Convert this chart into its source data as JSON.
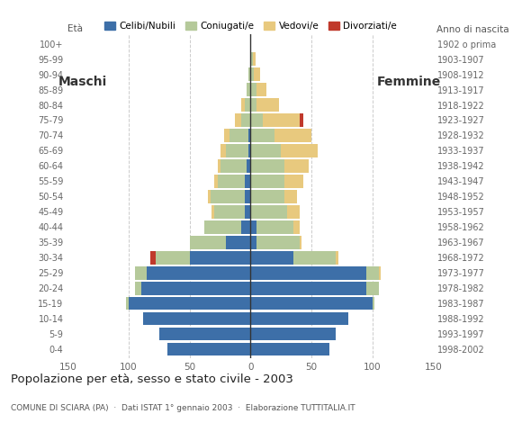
{
  "age_groups": [
    "0-4",
    "5-9",
    "10-14",
    "15-19",
    "20-24",
    "25-29",
    "30-34",
    "35-39",
    "40-44",
    "45-49",
    "50-54",
    "55-59",
    "60-64",
    "65-69",
    "70-74",
    "75-79",
    "80-84",
    "85-89",
    "90-94",
    "95-99",
    "100+"
  ],
  "birth_years": [
    "1998-2002",
    "1993-1997",
    "1988-1992",
    "1983-1987",
    "1978-1982",
    "1973-1977",
    "1968-1972",
    "1963-1967",
    "1958-1962",
    "1953-1957",
    "1948-1952",
    "1943-1947",
    "1938-1942",
    "1933-1937",
    "1928-1932",
    "1923-1927",
    "1918-1922",
    "1913-1917",
    "1908-1912",
    "1903-1907",
    "1902 o prima"
  ],
  "males": {
    "celibi": [
      68,
      75,
      88,
      100,
      90,
      85,
      50,
      20,
      8,
      5,
      5,
      5,
      3,
      2,
      2,
      0,
      0,
      0,
      0,
      0,
      0
    ],
    "coniugati": [
      0,
      0,
      0,
      2,
      5,
      10,
      28,
      30,
      30,
      25,
      28,
      22,
      22,
      18,
      15,
      8,
      5,
      3,
      2,
      0,
      0
    ],
    "vedovi": [
      0,
      0,
      0,
      0,
      0,
      0,
      0,
      0,
      0,
      2,
      2,
      3,
      2,
      5,
      5,
      5,
      3,
      0,
      0,
      0,
      0
    ],
    "divorziati": [
      0,
      0,
      0,
      0,
      0,
      0,
      4,
      0,
      0,
      0,
      0,
      0,
      0,
      0,
      0,
      0,
      0,
      0,
      0,
      0,
      0
    ]
  },
  "females": {
    "nubili": [
      65,
      70,
      80,
      100,
      95,
      95,
      35,
      5,
      5,
      0,
      0,
      0,
      0,
      0,
      0,
      0,
      0,
      0,
      0,
      0,
      0
    ],
    "coniugate": [
      0,
      0,
      0,
      2,
      10,
      10,
      35,
      35,
      30,
      30,
      28,
      28,
      28,
      25,
      20,
      10,
      5,
      5,
      3,
      2,
      0
    ],
    "vedove": [
      0,
      0,
      0,
      0,
      0,
      2,
      2,
      2,
      5,
      10,
      10,
      15,
      20,
      30,
      30,
      30,
      18,
      8,
      5,
      2,
      0
    ],
    "divorziate": [
      0,
      0,
      0,
      0,
      0,
      0,
      0,
      0,
      0,
      0,
      0,
      0,
      0,
      0,
      0,
      3,
      0,
      0,
      0,
      0,
      0
    ]
  },
  "color_celibi": "#3d6fa8",
  "color_coniugati": "#b5c99a",
  "color_vedovi": "#e8c97e",
  "color_divorziati": "#c0392b",
  "title": "Popolazione per età, sesso e stato civile - 2003",
  "subtitle": "COMUNE DI SCIARA (PA)  ·  Dati ISTAT 1° gennaio 2003  ·  Elaborazione TUTTITALIA.IT",
  "xlabel_left": "Maschi",
  "xlabel_right": "Femmine",
  "ylabel_left": "Età",
  "ylabel_right": "Anno di nascita",
  "xlim": 150,
  "legend_labels": [
    "Celibi/Nubili",
    "Coniugati/e",
    "Vedovi/e",
    "Divorziati/e"
  ],
  "bg_color": "#ffffff",
  "grid_color": "#cccccc"
}
